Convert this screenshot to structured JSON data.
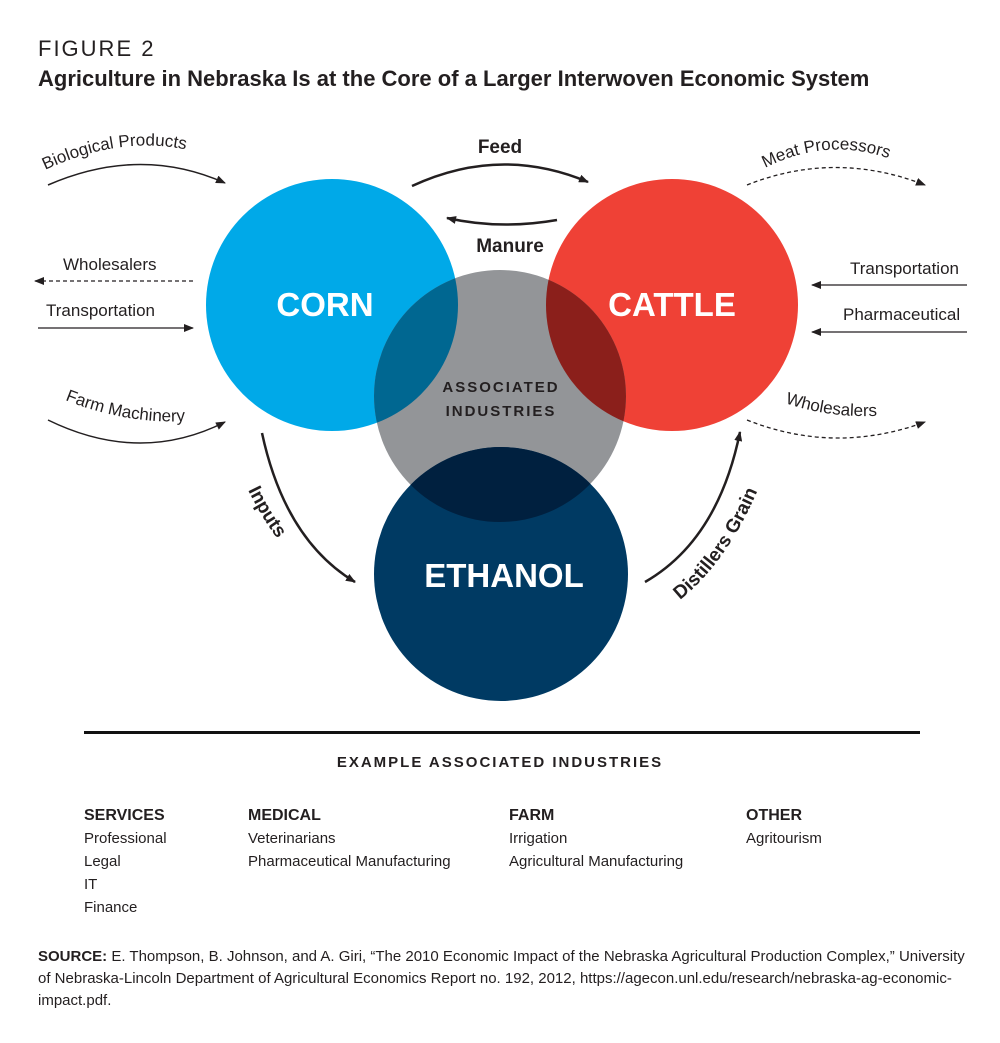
{
  "figure_label": "FIGURE 2",
  "title": "Agriculture in Nebraska Is at the Core of a Larger Interwoven Economic System",
  "circles": {
    "corn": {
      "label": "CORN",
      "color": "#00a9e8"
    },
    "cattle": {
      "label": "CATTLE",
      "color": "#ef4136"
    },
    "associated": {
      "label_line1": "ASSOCIATED",
      "label_line2": "INDUSTRIES",
      "color": "#939598"
    },
    "ethanol": {
      "label": "ETHANOL",
      "color": "#003a63"
    }
  },
  "flows": {
    "biological_products": "Biological Products",
    "wholesalers_left": "Wholesalers",
    "transportation_left": "Transportation",
    "farm_machinery": "Farm Machinery",
    "feed": "Feed",
    "manure": "Manure",
    "meat_processors": "Meat Processors",
    "transportation_right": "Transportation",
    "pharmaceutical": "Pharmaceutical",
    "wholesalers_right": "Wholesalers",
    "inputs": "Inputs",
    "distillers_grain": "Distillers Grain"
  },
  "examples": {
    "heading": "EXAMPLE ASSOCIATED INDUSTRIES",
    "columns": [
      {
        "header": "SERVICES",
        "items": [
          "Professional",
          "Legal",
          "IT",
          "Finance"
        ]
      },
      {
        "header": "MEDICAL",
        "items": [
          "Veterinarians",
          "Pharmaceutical Manufacturing"
        ]
      },
      {
        "header": "FARM",
        "items": [
          "Irrigation",
          "Agricultural Manufacturing"
        ]
      },
      {
        "header": "OTHER",
        "items": [
          "Agritourism"
        ]
      }
    ]
  },
  "source": {
    "label": "SOURCE:",
    "text": " E. Thompson, B. Johnson, and A. Giri, “The 2010 Economic Impact of the Nebraska Agricultural Production Complex,” University of Nebraska-Lincoln Department of Agricultural Economics Report no. 192, 2012, https://agecon.unl.edu/research/nebraska-ag-economic-impact.pdf."
  }
}
